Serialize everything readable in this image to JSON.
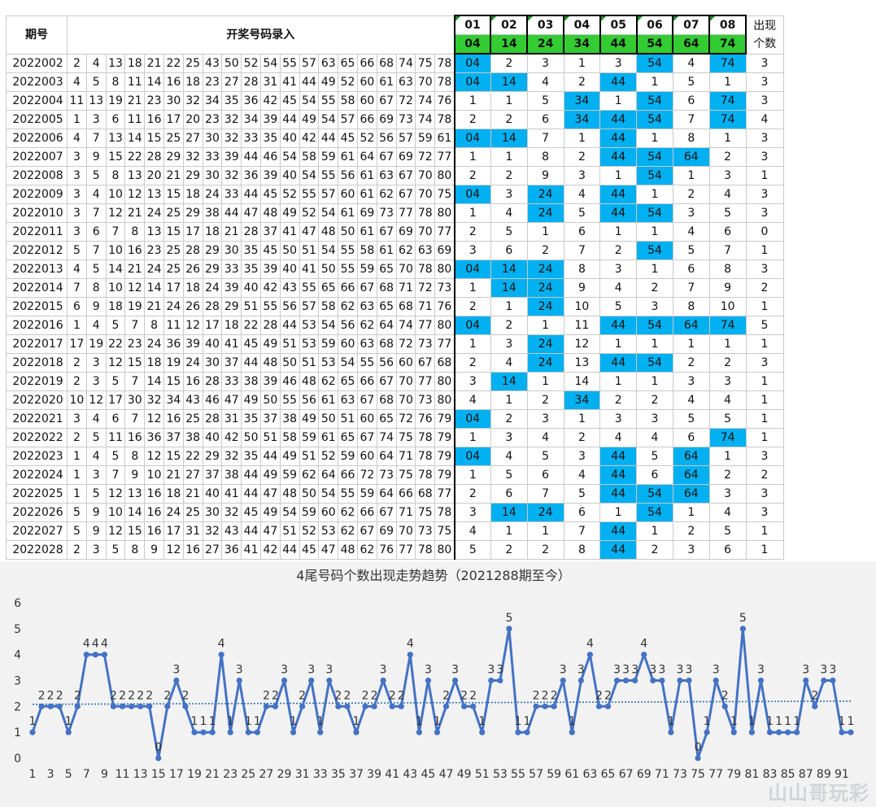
{
  "table": {
    "header_issue": "期号",
    "header_title": "开奖号码录入",
    "positions": [
      "01",
      "02",
      "03",
      "04",
      "05",
      "06",
      "07",
      "08"
    ],
    "tails": [
      "04",
      "14",
      "24",
      "34",
      "44",
      "54",
      "64",
      "74"
    ],
    "count_header": "出现个数",
    "rows": [
      {
        "issue": "2022002",
        "nums": [
          "2",
          "4",
          "13",
          "18",
          "21",
          "22",
          "25",
          "43",
          "50",
          "52",
          "54",
          "55",
          "57",
          "63",
          "65",
          "66",
          "68",
          "74",
          "75",
          "78"
        ],
        "trend": [
          "04",
          "2",
          "3",
          "1",
          "3",
          "54",
          "4",
          "74"
        ],
        "count": "3"
      },
      {
        "issue": "2022003",
        "nums": [
          "4",
          "5",
          "8",
          "11",
          "14",
          "16",
          "18",
          "23",
          "27",
          "28",
          "31",
          "41",
          "44",
          "49",
          "52",
          "60",
          "61",
          "63",
          "70",
          "78"
        ],
        "trend": [
          "04",
          "14",
          "4",
          "2",
          "44",
          "1",
          "5",
          "1"
        ],
        "count": "3"
      },
      {
        "issue": "2022004",
        "nums": [
          "11",
          "13",
          "19",
          "21",
          "23",
          "30",
          "32",
          "34",
          "35",
          "36",
          "42",
          "45",
          "54",
          "55",
          "58",
          "60",
          "67",
          "72",
          "74",
          "76"
        ],
        "trend": [
          "1",
          "1",
          "5",
          "34",
          "1",
          "54",
          "6",
          "74"
        ],
        "count": "3"
      },
      {
        "issue": "2022005",
        "nums": [
          "1",
          "3",
          "6",
          "11",
          "16",
          "17",
          "20",
          "23",
          "32",
          "34",
          "39",
          "44",
          "49",
          "54",
          "57",
          "66",
          "69",
          "73",
          "74",
          "78"
        ],
        "trend": [
          "2",
          "2",
          "6",
          "34",
          "44",
          "54",
          "7",
          "74"
        ],
        "count": "4"
      },
      {
        "issue": "2022006",
        "nums": [
          "4",
          "7",
          "13",
          "14",
          "15",
          "25",
          "27",
          "30",
          "32",
          "33",
          "35",
          "40",
          "42",
          "44",
          "45",
          "52",
          "56",
          "57",
          "59",
          "61"
        ],
        "trend": [
          "04",
          "14",
          "7",
          "1",
          "44",
          "1",
          "8",
          "1"
        ],
        "count": "3"
      },
      {
        "issue": "2022007",
        "nums": [
          "3",
          "9",
          "15",
          "22",
          "28",
          "29",
          "32",
          "33",
          "39",
          "44",
          "46",
          "54",
          "58",
          "59",
          "61",
          "64",
          "67",
          "69",
          "72",
          "77"
        ],
        "trend": [
          "1",
          "1",
          "8",
          "2",
          "44",
          "54",
          "64",
          "2"
        ],
        "count": "3"
      },
      {
        "issue": "2022008",
        "nums": [
          "3",
          "5",
          "8",
          "13",
          "20",
          "21",
          "29",
          "30",
          "32",
          "36",
          "39",
          "40",
          "54",
          "55",
          "56",
          "61",
          "63",
          "67",
          "70",
          "80"
        ],
        "trend": [
          "2",
          "2",
          "9",
          "3",
          "1",
          "54",
          "1",
          "3"
        ],
        "count": "1"
      },
      {
        "issue": "2022009",
        "nums": [
          "3",
          "4",
          "10",
          "12",
          "13",
          "15",
          "18",
          "24",
          "33",
          "44",
          "45",
          "52",
          "55",
          "57",
          "60",
          "61",
          "62",
          "67",
          "70",
          "75"
        ],
        "trend": [
          "04",
          "3",
          "24",
          "4",
          "44",
          "1",
          "2",
          "4"
        ],
        "count": "3"
      },
      {
        "issue": "2022010",
        "nums": [
          "3",
          "7",
          "12",
          "21",
          "24",
          "25",
          "29",
          "38",
          "44",
          "47",
          "48",
          "49",
          "52",
          "54",
          "61",
          "69",
          "73",
          "77",
          "78",
          "80"
        ],
        "trend": [
          "1",
          "4",
          "24",
          "5",
          "44",
          "54",
          "3",
          "5"
        ],
        "count": "3"
      },
      {
        "issue": "2022011",
        "nums": [
          "3",
          "6",
          "7",
          "8",
          "13",
          "15",
          "17",
          "18",
          "21",
          "28",
          "37",
          "41",
          "47",
          "48",
          "50",
          "61",
          "67",
          "69",
          "70",
          "77"
        ],
        "trend": [
          "2",
          "5",
          "1",
          "6",
          "1",
          "1",
          "4",
          "6"
        ],
        "count": "0"
      },
      {
        "issue": "2022012",
        "nums": [
          "5",
          "7",
          "10",
          "16",
          "23",
          "25",
          "28",
          "29",
          "30",
          "35",
          "45",
          "50",
          "51",
          "54",
          "55",
          "58",
          "61",
          "62",
          "63",
          "69"
        ],
        "trend": [
          "3",
          "6",
          "2",
          "7",
          "2",
          "54",
          "5",
          "7"
        ],
        "count": "1"
      },
      {
        "issue": "2022013",
        "nums": [
          "4",
          "5",
          "14",
          "21",
          "24",
          "25",
          "26",
          "29",
          "33",
          "35",
          "39",
          "40",
          "41",
          "50",
          "55",
          "59",
          "65",
          "70",
          "78",
          "80"
        ],
        "trend": [
          "04",
          "14",
          "24",
          "8",
          "3",
          "1",
          "6",
          "8"
        ],
        "count": "3"
      },
      {
        "issue": "2022014",
        "nums": [
          "7",
          "8",
          "10",
          "12",
          "14",
          "17",
          "18",
          "24",
          "39",
          "40",
          "42",
          "43",
          "55",
          "65",
          "66",
          "67",
          "68",
          "71",
          "72",
          "73"
        ],
        "trend": [
          "1",
          "14",
          "24",
          "9",
          "4",
          "2",
          "7",
          "9"
        ],
        "count": "2"
      },
      {
        "issue": "2022015",
        "nums": [
          "6",
          "9",
          "18",
          "19",
          "21",
          "24",
          "26",
          "28",
          "29",
          "51",
          "55",
          "56",
          "57",
          "58",
          "62",
          "63",
          "65",
          "68",
          "71",
          "76"
        ],
        "trend": [
          "2",
          "1",
          "24",
          "10",
          "5",
          "3",
          "8",
          "10"
        ],
        "count": "1"
      },
      {
        "issue": "2022016",
        "nums": [
          "1",
          "4",
          "5",
          "7",
          "8",
          "11",
          "12",
          "17",
          "18",
          "22",
          "28",
          "44",
          "53",
          "54",
          "56",
          "62",
          "64",
          "74",
          "77",
          "80"
        ],
        "trend": [
          "04",
          "2",
          "1",
          "11",
          "44",
          "54",
          "64",
          "74"
        ],
        "count": "5"
      },
      {
        "issue": "2022017",
        "nums": [
          "17",
          "19",
          "22",
          "23",
          "24",
          "36",
          "39",
          "40",
          "41",
          "45",
          "49",
          "51",
          "53",
          "59",
          "60",
          "63",
          "68",
          "72",
          "73",
          "77"
        ],
        "trend": [
          "1",
          "3",
          "24",
          "12",
          "1",
          "1",
          "1",
          "1"
        ],
        "count": "1"
      },
      {
        "issue": "2022018",
        "nums": [
          "2",
          "3",
          "12",
          "15",
          "18",
          "19",
          "24",
          "30",
          "37",
          "44",
          "48",
          "50",
          "51",
          "53",
          "54",
          "55",
          "56",
          "60",
          "67",
          "68"
        ],
        "trend": [
          "2",
          "4",
          "24",
          "13",
          "44",
          "54",
          "2",
          "2"
        ],
        "count": "3"
      },
      {
        "issue": "2022019",
        "nums": [
          "2",
          "3",
          "5",
          "7",
          "14",
          "15",
          "16",
          "28",
          "33",
          "38",
          "39",
          "46",
          "48",
          "62",
          "65",
          "66",
          "67",
          "70",
          "77",
          "80"
        ],
        "trend": [
          "3",
          "14",
          "1",
          "14",
          "1",
          "1",
          "3",
          "3"
        ],
        "count": "1"
      },
      {
        "issue": "2022020",
        "nums": [
          "10",
          "12",
          "17",
          "30",
          "32",
          "34",
          "43",
          "46",
          "47",
          "49",
          "50",
          "55",
          "56",
          "61",
          "63",
          "67",
          "68",
          "70",
          "73",
          "80"
        ],
        "trend": [
          "4",
          "1",
          "2",
          "34",
          "2",
          "2",
          "4",
          "4"
        ],
        "count": "1"
      },
      {
        "issue": "2022021",
        "nums": [
          "3",
          "4",
          "6",
          "7",
          "12",
          "16",
          "25",
          "28",
          "31",
          "35",
          "37",
          "38",
          "49",
          "50",
          "51",
          "60",
          "65",
          "72",
          "76",
          "79"
        ],
        "trend": [
          "04",
          "2",
          "3",
          "1",
          "3",
          "3",
          "5",
          "5"
        ],
        "count": "1"
      },
      {
        "issue": "2022022",
        "nums": [
          "2",
          "5",
          "11",
          "16",
          "36",
          "37",
          "38",
          "40",
          "42",
          "50",
          "51",
          "58",
          "59",
          "61",
          "65",
          "67",
          "74",
          "75",
          "78",
          "79"
        ],
        "trend": [
          "1",
          "3",
          "4",
          "2",
          "4",
          "4",
          "6",
          "74"
        ],
        "count": "1"
      },
      {
        "issue": "2022023",
        "nums": [
          "1",
          "4",
          "5",
          "8",
          "12",
          "15",
          "22",
          "29",
          "32",
          "35",
          "44",
          "49",
          "51",
          "52",
          "59",
          "60",
          "64",
          "71",
          "78",
          "79"
        ],
        "trend": [
          "04",
          "4",
          "5",
          "3",
          "44",
          "5",
          "64",
          "1"
        ],
        "count": "3"
      },
      {
        "issue": "2022024",
        "nums": [
          "1",
          "3",
          "7",
          "9",
          "10",
          "21",
          "27",
          "37",
          "38",
          "44",
          "49",
          "59",
          "62",
          "64",
          "66",
          "72",
          "73",
          "75",
          "78",
          "79"
        ],
        "trend": [
          "1",
          "5",
          "6",
          "4",
          "44",
          "6",
          "64",
          "2"
        ],
        "count": "2"
      },
      {
        "issue": "2022025",
        "nums": [
          "1",
          "5",
          "12",
          "13",
          "16",
          "18",
          "21",
          "40",
          "41",
          "44",
          "47",
          "48",
          "50",
          "54",
          "55",
          "59",
          "64",
          "66",
          "68",
          "77"
        ],
        "trend": [
          "2",
          "6",
          "7",
          "5",
          "44",
          "54",
          "64",
          "3"
        ],
        "count": "3"
      },
      {
        "issue": "2022026",
        "nums": [
          "5",
          "9",
          "10",
          "14",
          "16",
          "24",
          "25",
          "30",
          "32",
          "45",
          "49",
          "54",
          "59",
          "60",
          "62",
          "66",
          "67",
          "71",
          "75",
          "78"
        ],
        "trend": [
          "3",
          "14",
          "24",
          "6",
          "1",
          "54",
          "1",
          "4"
        ],
        "count": "3"
      },
      {
        "issue": "2022027",
        "nums": [
          "5",
          "9",
          "12",
          "15",
          "16",
          "17",
          "31",
          "32",
          "43",
          "44",
          "47",
          "51",
          "52",
          "53",
          "62",
          "67",
          "69",
          "70",
          "73",
          "75"
        ],
        "trend": [
          "4",
          "1",
          "1",
          "7",
          "44",
          "1",
          "2",
          "5"
        ],
        "count": "1"
      },
      {
        "issue": "2022028",
        "nums": [
          "2",
          "3",
          "5",
          "8",
          "9",
          "12",
          "16",
          "27",
          "36",
          "41",
          "42",
          "44",
          "45",
          "47",
          "48",
          "62",
          "76",
          "77",
          "78",
          "80"
        ],
        "trend": [
          "5",
          "2",
          "2",
          "8",
          "44",
          "2",
          "3",
          "6"
        ],
        "count": "1"
      }
    ]
  },
  "chart_data": {
    "type": "line",
    "title": "4尾号码个数出现走势趋势（2021288期至今）",
    "x": [
      1,
      2,
      3,
      4,
      5,
      6,
      7,
      8,
      9,
      10,
      11,
      12,
      13,
      14,
      15,
      16,
      17,
      18,
      19,
      20,
      21,
      22,
      23,
      24,
      25,
      26,
      27,
      28,
      29,
      30,
      31,
      32,
      33,
      34,
      35,
      36,
      37,
      38,
      39,
      40,
      41,
      42,
      43,
      44,
      45,
      46,
      47,
      48,
      49,
      50,
      51,
      52,
      53,
      54,
      55,
      56,
      57,
      58,
      59,
      60,
      61,
      62,
      63,
      64,
      65,
      66,
      67,
      68,
      69,
      70,
      71,
      72,
      73,
      74,
      75,
      76,
      77,
      78,
      79,
      80,
      81,
      82,
      83,
      84,
      85,
      86,
      87,
      88,
      89,
      90,
      91,
      92
    ],
    "xtick_labels": [
      "1",
      "3",
      "5",
      "7",
      "9",
      "11",
      "13",
      "15",
      "17",
      "19",
      "21",
      "23",
      "25",
      "27",
      "29",
      "31",
      "33",
      "35",
      "37",
      "39",
      "41",
      "43",
      "45",
      "47",
      "49",
      "51",
      "53",
      "55",
      "57",
      "59",
      "61",
      "63",
      "65",
      "67",
      "69",
      "71",
      "73",
      "75",
      "77",
      "79",
      "81",
      "83",
      "85",
      "87",
      "89",
      "91"
    ],
    "values": [
      1,
      2,
      2,
      2,
      1,
      2,
      4,
      4,
      4,
      2,
      2,
      2,
      2,
      2,
      0,
      2,
      3,
      2,
      1,
      1,
      1,
      4,
      1,
      3,
      1,
      1,
      2,
      2,
      3,
      1,
      2,
      3,
      1,
      3,
      2,
      2,
      1,
      2,
      2,
      3,
      2,
      2,
      4,
      1,
      3,
      1,
      2,
      3,
      2,
      2,
      1,
      3,
      3,
      5,
      1,
      1,
      2,
      2,
      2,
      3,
      1,
      3,
      4,
      2,
      2,
      3,
      3,
      3,
      4,
      3,
      3,
      1,
      3,
      3,
      0,
      1,
      3,
      2,
      1,
      5,
      1,
      3,
      1,
      1,
      1,
      1,
      3,
      2,
      3,
      3,
      1,
      1
    ],
    "ylim": [
      0,
      6
    ],
    "yticks": [
      "0",
      "1",
      "2",
      "3",
      "4",
      "5",
      "6"
    ],
    "grid": false,
    "trendline": "linear dotted",
    "line_color": "#4472c4",
    "trend_color": "#2e75b6"
  },
  "watermark": "山山哥玩彩"
}
